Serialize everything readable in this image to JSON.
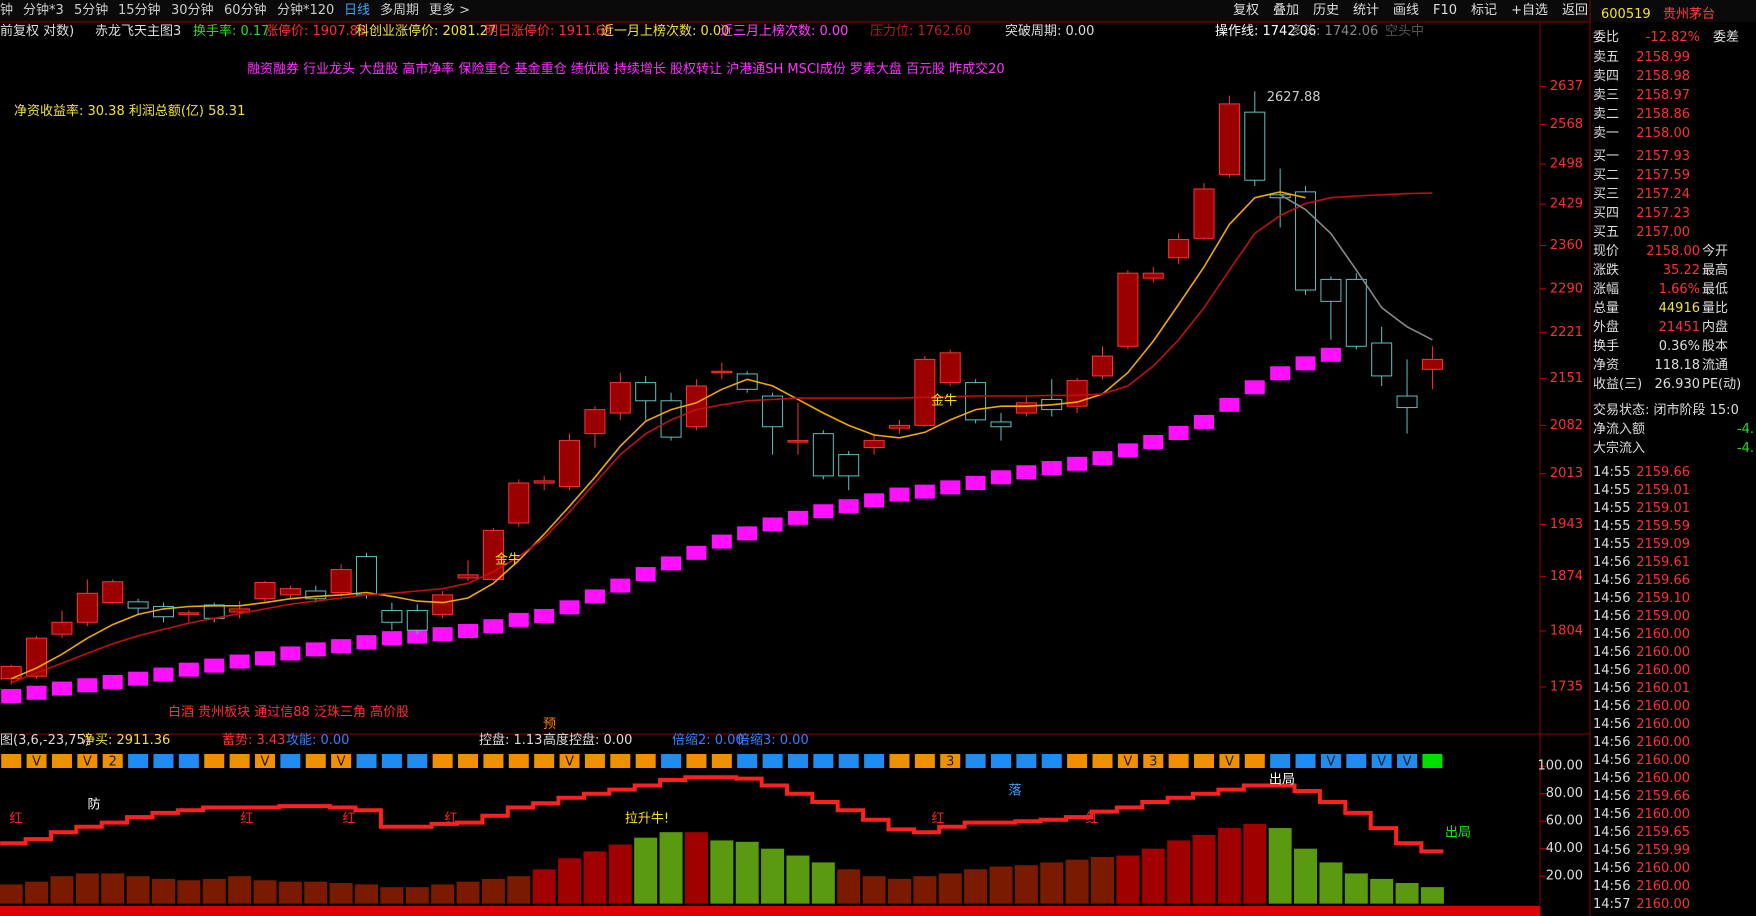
{
  "toolbar": {
    "periods": [
      "钟",
      "分钟*3",
      "5分钟",
      "15分钟",
      "30分钟",
      "60分钟",
      "分钟*120",
      "日线",
      "多周期",
      "更多 >"
    ],
    "buttons": [
      "复权",
      "叠加",
      "历史",
      "统计",
      "画线",
      "F10",
      "标记",
      "+自选",
      "返回"
    ]
  },
  "info_line": [
    {
      "text": "前复权 对数)",
      "color": "#dddddd"
    },
    {
      "text": "赤龙飞天主图3",
      "color": "#dddddd"
    },
    {
      "text": "换手率: 0.17",
      "color": "#22dd22"
    },
    {
      "text": "涨停价: 1907.83",
      "color": "#ff3030"
    },
    {
      "text": "科创业涨停价: 2081.27",
      "color": "#f0e040"
    },
    {
      "text": "明日涨停价: 1911.69",
      "color": "#ff3030"
    },
    {
      "text": "近一月上榜次数: 0.00",
      "color": "#f0e040"
    },
    {
      "text": "近三月上榜次数: 0.00",
      "color": "#ff40ff"
    },
    {
      "text": "压力位: 1762.60",
      "color": "#b02020"
    },
    {
      "text": "突破周期: 0.00",
      "color": "#dddddd"
    },
    {
      "text": "操作线: 1742.06",
      "color": "#ffffff"
    },
    {
      "text": "多头: 1742.06",
      "color": "#888888"
    },
    {
      "text": "空头中",
      "color": "#555555"
    }
  ],
  "tags": "融资融券 行业龙头 大盘股 高市净率 保险重仓 基金重仓 绩优股 持续增长 股权转让 沪港通SH MSCI成份 罗素大盘 百元股 昨成交20",
  "finance": "净资收益率: 30.38 利润总额(亿) 58.31",
  "sectors": "白酒 贵州板块 通过信88 泛珠三角 高价股",
  "pre_mark": "预",
  "chart_data": [
    {
      "type": "candlestick",
      "log": true,
      "ylim": [
        1679,
        2716
      ],
      "yticks": [
        1735,
        1804,
        1874,
        1943,
        2013,
        2082,
        2151,
        2221,
        2290,
        2360,
        2429,
        2498,
        2568,
        2637
      ],
      "up_color": "#ff3232",
      "up_fill": "#9a0000",
      "down_color": "#5fc0c0",
      "open": [
        1745,
        1748,
        1800,
        1815,
        1840,
        1841,
        1835,
        1825,
        1837,
        1828,
        1845,
        1850,
        1855,
        1853,
        1900,
        1830,
        1830,
        1825,
        1872,
        1870,
        1945,
        2000,
        1995,
        2070,
        2100,
        2145,
        2118,
        2080,
        2160,
        2158,
        2125,
        2060,
        2070,
        2040,
        2050,
        2078,
        2082,
        2145,
        2145,
        2087,
        2100,
        2120,
        2110,
        2155,
        2200,
        2307,
        2340,
        2372,
        2480,
        2590,
        2445,
        2450,
        2305,
        2305,
        2205,
        2125,
        2165
      ],
      "high": [
        1762,
        1798,
        1830,
        1870,
        1870,
        1845,
        1840,
        1830,
        1840,
        1842,
        1868,
        1862,
        1862,
        1890,
        1905,
        1840,
        1838,
        1855,
        1895,
        1938,
        2005,
        2010,
        2070,
        2110,
        2160,
        2155,
        2130,
        2150,
        2175,
        2162,
        2130,
        2115,
        2075,
        2045,
        2070,
        2090,
        2185,
        2195,
        2150,
        2100,
        2125,
        2150,
        2152,
        2200,
        2320,
        2325,
        2380,
        2465,
        2620,
        2627.88,
        2490,
        2460,
        2310,
        2315,
        2230,
        2180,
        2200
      ],
      "low": [
        1738,
        1745,
        1795,
        1810,
        1838,
        1825,
        1815,
        1815,
        1815,
        1820,
        1840,
        1845,
        1840,
        1848,
        1845,
        1805,
        1800,
        1820,
        1868,
        1868,
        1940,
        1990,
        1990,
        2050,
        2090,
        2090,
        2060,
        2075,
        2150,
        2130,
        2040,
        2040,
        2005,
        1990,
        2040,
        2070,
        2080,
        2140,
        2085,
        2060,
        2095,
        2095,
        2100,
        2150,
        2195,
        2300,
        2330,
        2370,
        2475,
        2460,
        2390,
        2280,
        2210,
        2195,
        2140,
        2070,
        2135
      ],
      "close": [
        1760,
        1795,
        1815,
        1852,
        1867,
        1833,
        1822,
        1827,
        1820,
        1832,
        1866,
        1858,
        1845,
        1883,
        1850,
        1815,
        1805,
        1850,
        1876,
        1935,
        2000,
        2003,
        2060,
        2105,
        2145,
        2118,
        2065,
        2140,
        2162,
        2135,
        2080,
        2060,
        2010,
        2010,
        2060,
        2082,
        2180,
        2190,
        2090,
        2080,
        2115,
        2105,
        2148,
        2185,
        2315,
        2315,
        2370,
        2455,
        2605,
        2470,
        2440,
        2288,
        2270,
        2200,
        2155,
        2108,
        2180
      ],
      "lines": [
        {
          "color": "#f0a800",
          "values": [
            1745,
            1758,
            1775,
            1795,
            1812,
            1825,
            1832,
            1835,
            1836,
            1836,
            1840,
            1845,
            1848,
            1850,
            1853,
            1848,
            1842,
            1840,
            1846,
            1865,
            1895,
            1930,
            1968,
            2008,
            2052,
            2088,
            2105,
            2115,
            2135,
            2150,
            2140,
            2120,
            2100,
            2082,
            2068,
            2064,
            2072,
            2090,
            2105,
            2110,
            2110,
            2112,
            2116,
            2128,
            2160,
            2208,
            2265,
            2325,
            2395,
            2440,
            2450,
            2440,
            null,
            null,
            null,
            null,
            null
          ]
        },
        {
          "color": "#c01010",
          "values": [
            1740,
            1752,
            1764,
            1776,
            1788,
            1798,
            1806,
            1814,
            1820,
            1826,
            1832,
            1838,
            1842,
            1846,
            1850,
            1852,
            1855,
            1858,
            1865,
            1880,
            1900,
            1925,
            1960,
            2000,
            2040,
            2070,
            2090,
            2105,
            2112,
            2118,
            2120,
            2122,
            2122,
            2122,
            2122,
            2122,
            2123,
            2124,
            2125,
            2125,
            2125,
            2126,
            2126,
            2128,
            2140,
            2170,
            2210,
            2260,
            2320,
            2380,
            2410,
            2430,
            2440,
            2443,
            2445,
            2447,
            2448
          ]
        },
        {
          "color": "#888888",
          "values": [
            null,
            null,
            null,
            null,
            null,
            null,
            null,
            null,
            null,
            null,
            null,
            null,
            null,
            null,
            null,
            null,
            null,
            null,
            null,
            null,
            null,
            null,
            null,
            null,
            null,
            null,
            null,
            null,
            null,
            null,
            null,
            null,
            null,
            null,
            null,
            null,
            null,
            null,
            null,
            null,
            null,
            null,
            null,
            null,
            null,
            null,
            null,
            null,
            null,
            null,
            2445,
            2420,
            2380,
            2320,
            2260,
            2230,
            2210
          ]
        }
      ],
      "blocks": {
        "color": "#ff10ff",
        "values": [
          1724,
          1728,
          1733,
          1737,
          1741,
          1745,
          1750,
          1756,
          1761,
          1766,
          1770,
          1776,
          1781,
          1785,
          1790,
          1795,
          1797,
          1800,
          1804,
          1810,
          1818,
          1823,
          1834,
          1848,
          1862,
          1877,
          1891,
          1905,
          1920,
          1931,
          1943,
          1952,
          1961,
          1968,
          1976,
          1984,
          1988,
          1994,
          2000,
          2008,
          2015,
          2021,
          2027,
          2035,
          2046,
          2058,
          2071,
          2087,
          2112,
          2138,
          2159,
          2174,
          2187,
          null,
          null,
          null,
          null
        ]
      },
      "annotations": [
        "金牛",
        "金牛"
      ],
      "peak_label": "2627.88"
    },
    {
      "type": "bar",
      "ylim": [
        -9,
        122
      ],
      "yticks": [
        {
          "value": 100,
          "label": "100.00"
        },
        {
          "value": 80,
          "label": "80.00"
        },
        {
          "value": 60,
          "label": "60.00"
        },
        {
          "value": 40,
          "label": "40.00"
        },
        {
          "value": 20,
          "label": "20.00"
        }
      ],
      "header": [
        {
          "text": "图(3,6,-23,75)",
          "color": "#dddddd"
        },
        {
          "text": "净买: 2911.36",
          "color": "#f0e040"
        },
        {
          "text": "蓄势: 3.43",
          "color": "#ff3030"
        },
        {
          "text": "攻能: 0.00",
          "color": "#3080ff"
        },
        {
          "text": "控盘: 1.13",
          "color": "#dddddd"
        },
        {
          "text": "高度控盘: 0.00",
          "color": "#dddddd"
        },
        {
          "text": "倍缩2: 0.00",
          "color": "#3080ff"
        },
        {
          "text": "倍缩3: 0.00",
          "color": "#3080ff"
        }
      ],
      "values": [
        14,
        16,
        20,
        22,
        22,
        20,
        18,
        17,
        18,
        20,
        17,
        16,
        16,
        15,
        14,
        12,
        12,
        14,
        16,
        18,
        20,
        25,
        33,
        38,
        43,
        48,
        52,
        52,
        46,
        45,
        40,
        35,
        30,
        25,
        20,
        18,
        20,
        22,
        25,
        27,
        28,
        30,
        32,
        34,
        35,
        40,
        46,
        50,
        55,
        58,
        55,
        40,
        30,
        22,
        18,
        15,
        12
      ],
      "colors": [
        "#7a1a00",
        "#7a1a00",
        "#7a1a00",
        "#7a1a00",
        "#7a1a00",
        "#7a1a00",
        "#7a1a00",
        "#7a1a00",
        "#7a1a00",
        "#7a1a00",
        "#7a1a00",
        "#7a1a00",
        "#7a1a00",
        "#7a1a00",
        "#7a1a00",
        "#7a1a00",
        "#7a1a00",
        "#7a1a00",
        "#7a1a00",
        "#7a1a00",
        "#7a1a00",
        "#a00000",
        "#a00000",
        "#a00000",
        "#a00000",
        "#5a9a10",
        "#5a9a10",
        "#a00000",
        "#5a9a10",
        "#5a9a10",
        "#5a9a10",
        "#5a9a10",
        "#5a9a10",
        "#7a1a00",
        "#7a1a00",
        "#7a1a00",
        "#7a1a00",
        "#7a1a00",
        "#7a1a00",
        "#7a1a00",
        "#7a1a00",
        "#7a1a00",
        "#7a1a00",
        "#7a1a00",
        "#a00000",
        "#a00000",
        "#a00000",
        "#a00000",
        "#a00000",
        "#a00000",
        "#5a9a10",
        "#5a9a10",
        "#5a9a10",
        "#5a9a10",
        "#5a9a10",
        "#5a9a10",
        "#5a9a10"
      ],
      "step_line": {
        "color": "#ff2020",
        "values": [
          44,
          47,
          52,
          56,
          59,
          63,
          66,
          68,
          70,
          70,
          70,
          71,
          71,
          70,
          68,
          56,
          56,
          58,
          59,
          64,
          70,
          73,
          77,
          80,
          83,
          86,
          90,
          92,
          92,
          91,
          86,
          80,
          74,
          68,
          61,
          54,
          52,
          56,
          59,
          59,
          60,
          61,
          63,
          67,
          70,
          74,
          77,
          80,
          83,
          86,
          86,
          82,
          74,
          66,
          55,
          44,
          38
        ]
      },
      "signal_colors": [
        "#f09000",
        "#f09000",
        "#f09000",
        "#f09000",
        "#f09000",
        "#1e8cf0",
        "#1e8cf0",
        "#1e8cf0",
        "#f09000",
        "#f09000",
        "#f09000",
        "#1e8cf0",
        "#f09000",
        "#f09000",
        "#1e8cf0",
        "#1e8cf0",
        "#1e8cf0",
        "#f09000",
        "#f09000",
        "#f09000",
        "#f09000",
        "#f09000",
        "#f09000",
        "#f09000",
        "#f09000",
        "#f09000",
        "#1e8cf0",
        "#f09000",
        "#f09000",
        "#1e8cf0",
        "#1e8cf0",
        "#1e8cf0",
        "#1e8cf0",
        "#1e8cf0",
        "#1e8cf0",
        "#f09000",
        "#f09000",
        "#f09000",
        "#1e8cf0",
        "#1e8cf0",
        "#1e8cf0",
        "#1e8cf0",
        "#f09000",
        "#f09000",
        "#f09000",
        "#f09000",
        "#f09000",
        "#f09000",
        "#f09000",
        "#f09000",
        "#1e8cf0",
        "#1e8cf0",
        "#1e8cf0",
        "#1e8cf0",
        "#1e8cf0",
        "#1e8cf0",
        "#00e000"
      ],
      "signal_labels": [
        null,
        "V",
        null,
        "V",
        "2",
        null,
        null,
        null,
        null,
        null,
        "V",
        null,
        null,
        "V",
        null,
        null,
        null,
        null,
        null,
        null,
        null,
        null,
        "V",
        null,
        null,
        null,
        null,
        null,
        null,
        null,
        null,
        null,
        null,
        null,
        null,
        null,
        null,
        "3",
        null,
        null,
        null,
        null,
        null,
        null,
        "V",
        "3",
        null,
        null,
        "V",
        null,
        null,
        null,
        "V",
        null,
        "V",
        "V",
        null
      ],
      "annotations": [
        "红",
        "防",
        "红",
        "红",
        "红",
        "拉升牛!",
        "红",
        "落",
        "红",
        "出局",
        "出局"
      ]
    }
  ],
  "quote": {
    "code": "600519",
    "name": "贵州茅台",
    "ratio": [
      "委比",
      "-12.82%",
      "委差"
    ],
    "book": [
      [
        "卖五",
        "2158.99"
      ],
      [
        "卖四",
        "2158.98"
      ],
      [
        "卖三",
        "2158.97"
      ],
      [
        "卖二",
        "2158.86"
      ],
      [
        "卖一",
        "2158.00"
      ],
      [
        "买一",
        "2157.93"
      ],
      [
        "买二",
        "2157.59"
      ],
      [
        "买三",
        "2157.24"
      ],
      [
        "买四",
        "2157.23"
      ],
      [
        "买五",
        "2157.00"
      ]
    ],
    "stats": [
      [
        "现价",
        "2158.00",
        "今开"
      ],
      [
        "涨跌",
        "35.22",
        "最高"
      ],
      [
        "涨幅",
        "1.66%",
        "最低"
      ],
      [
        "总量",
        "44916",
        "量比"
      ],
      [
        "外盘",
        "21451",
        "内盘"
      ],
      [
        "换手",
        "0.36%",
        "股本"
      ],
      [
        "净资",
        "118.18",
        "流通"
      ],
      [
        "收益(三)",
        "26.930",
        "PE(动)"
      ]
    ],
    "status": "交易状态: 闭市阶段 15:0",
    "flows": [
      [
        "净流入额",
        "-4."
      ],
      [
        "大宗流入",
        "-4."
      ]
    ],
    "ticks": [
      [
        "14:55",
        "2159.66"
      ],
      [
        "14:55",
        "2159.01"
      ],
      [
        "14:55",
        "2159.01"
      ],
      [
        "14:55",
        "2159.59"
      ],
      [
        "14:55",
        "2159.09"
      ],
      [
        "14:56",
        "2159.61"
      ],
      [
        "14:56",
        "2159.66"
      ],
      [
        "14:56",
        "2159.10"
      ],
      [
        "14:56",
        "2159.00"
      ],
      [
        "14:56",
        "2160.00"
      ],
      [
        "14:56",
        "2160.00"
      ],
      [
        "14:56",
        "2160.00"
      ],
      [
        "14:56",
        "2160.01"
      ],
      [
        "14:56",
        "2160.00"
      ],
      [
        "14:56",
        "2160.00"
      ],
      [
        "14:56",
        "2160.00"
      ],
      [
        "14:56",
        "2160.00"
      ],
      [
        "14:56",
        "2160.00"
      ],
      [
        "14:56",
        "2159.66"
      ],
      [
        "14:56",
        "2160.00"
      ],
      [
        "14:56",
        "2159.65"
      ],
      [
        "14:56",
        "2159.99"
      ],
      [
        "14:56",
        "2160.00"
      ],
      [
        "14:56",
        "2160.00"
      ],
      [
        "14:57",
        "2160.00"
      ]
    ]
  }
}
